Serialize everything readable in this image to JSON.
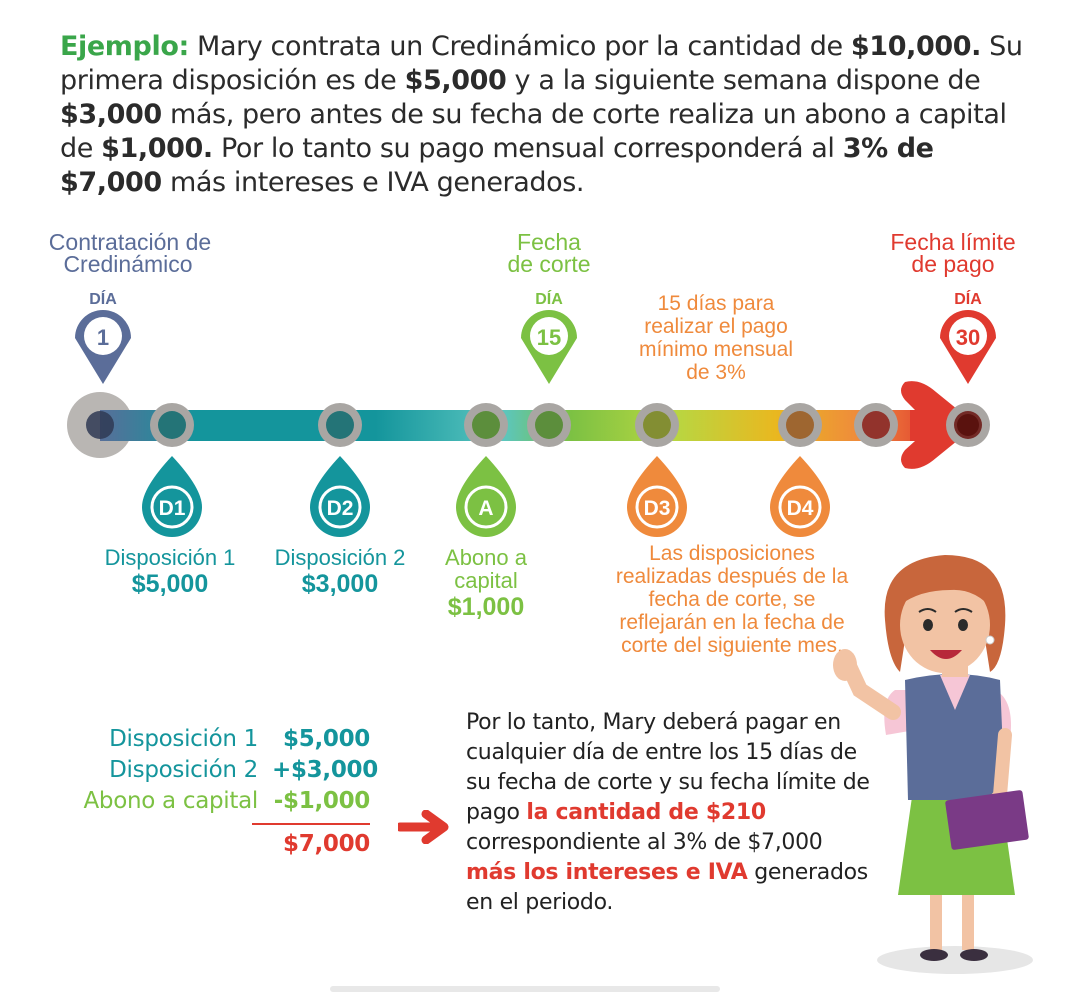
{
  "intro": {
    "lead": "Ejemplo:",
    "p1": " Mary contrata un Credinámico por la cantidad de ",
    "b1": "$10,000.",
    "p2": " Su primera disposición es de ",
    "b2": "$5,000",
    "p3": " y a la siguiente semana dispone de ",
    "b3": "$3,000",
    "p4": " más, pero antes de su fecha de corte realiza un abono a capital de ",
    "b4": "$1,000.",
    "p5": " Por lo tanto su pago mensual corresponderá al ",
    "b5": "3% de $7,000",
    "p6": " más intereses e IVA generados."
  },
  "top_labels": {
    "contratacion_1": "Contratación de",
    "contratacion_2": "Credinámico",
    "corte_1": "Fecha",
    "corte_2": "de corte",
    "limite_1": "Fecha límite",
    "limite_2": "de pago",
    "plazo_1": "15 días para",
    "plazo_2": "realizar el pago",
    "plazo_3": "mínimo mensual",
    "plazo_4": "de 3%"
  },
  "day_markers": [
    {
      "word": "DÍA",
      "num": "1",
      "color": "#5b6d99"
    },
    {
      "word": "DÍA",
      "num": "15",
      "color": "#7cc143"
    },
    {
      "word": "DÍA",
      "num": "30",
      "color": "#e03a2f"
    }
  ],
  "drops": [
    {
      "code": "D1",
      "color": "#14959c",
      "label1": "Disposición 1",
      "label2": "$5,000"
    },
    {
      "code": "D2",
      "color": "#14959c",
      "label1": "Disposición 2",
      "label2": "$3,000"
    },
    {
      "code": "A",
      "color": "#7cc143",
      "label1": "Abono a",
      "label2": "capital",
      "label3": "$1,000"
    },
    {
      "code": "D3",
      "color": "#ef8a3c"
    },
    {
      "code": "D4",
      "color": "#ef8a3c"
    }
  ],
  "note": {
    "l1": "Las disposiciones",
    "l2": "realizadas después de la",
    "l3": "fecha de corte, se",
    "l4": "reflejarán en la fecha de",
    "l5": "corte del siguiente mes."
  },
  "summary": {
    "rows": [
      {
        "label": "Disposición 1",
        "amount": "$5,000",
        "color": "#14959c"
      },
      {
        "label": "Disposición 2",
        "amount": "+$3,000",
        "color": "#14959c"
      },
      {
        "label": "Abono a capital",
        "amount": "-$1,000",
        "color": "#7cc143"
      }
    ],
    "total": "$7,000",
    "total_color": "#e03a2f"
  },
  "explanation": {
    "t1": "Por lo tanto, Mary deberá pagar en cualquier día de entre los 15 días de su fecha de corte y su fecha límite de pago ",
    "r1": "la cantidad de $210",
    "t2": " correspondiente al 3% de $7,000 ",
    "r2": "más los intereses e IVA",
    "t3": " generados en el periodo."
  },
  "colors": {
    "slate": "#5b6d99",
    "teal": "#14959c",
    "green": "#7cc143",
    "orange": "#ef8a3c",
    "red": "#e03a2f"
  }
}
